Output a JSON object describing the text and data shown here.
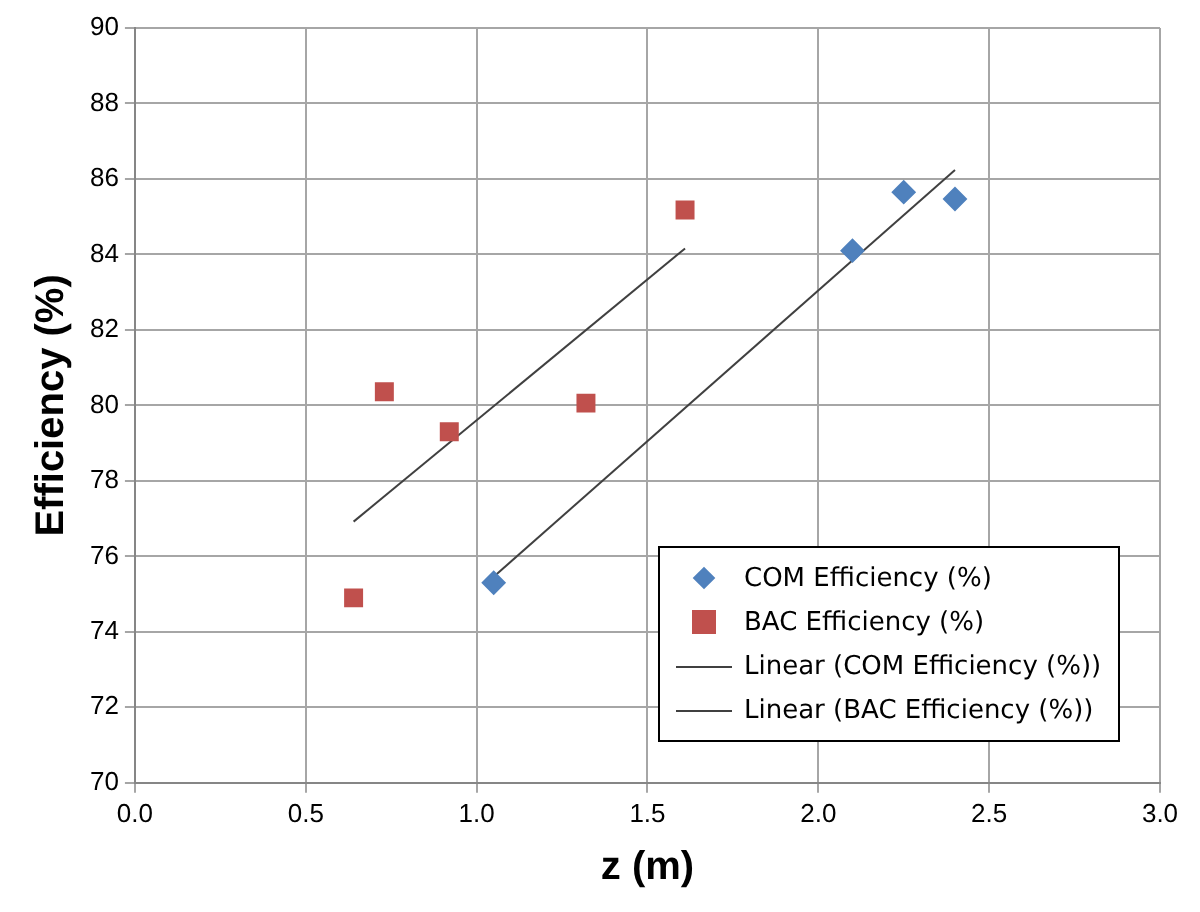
{
  "chart_data": {
    "type": "scatter",
    "xlabel": "z (m)",
    "ylabel": "Efficiency (%)",
    "xlim": [
      0,
      3
    ],
    "xticks": [
      {
        "value": 0,
        "label": "0.0"
      },
      {
        "value": 0.5,
        "label": "0.5"
      },
      {
        "value": 1,
        "label": "1.0"
      },
      {
        "value": 1.5,
        "label": "1.5"
      },
      {
        "value": 2,
        "label": "2.0"
      },
      {
        "value": 2.5,
        "label": "2.5"
      },
      {
        "value": 3,
        "label": "3.0"
      }
    ],
    "ylim": [
      70,
      90
    ],
    "yticks": [
      70,
      72,
      74,
      76,
      78,
      80,
      82,
      84,
      86,
      88,
      90
    ],
    "grid": true,
    "legend": "bottom right",
    "series": [
      {
        "name": "COM Efficiency (%)",
        "type": "scatter",
        "marker": "diamond",
        "color": "#4f81bd",
        "x": [
          1.05,
          2.1,
          2.25,
          2.4
        ],
        "values": [
          75.3,
          84.1,
          85.65,
          85.47
        ]
      },
      {
        "name": "BAC Efficiency (%)",
        "type": "scatter",
        "marker": "square",
        "color": "#c0504d",
        "x": [
          0.64,
          0.73,
          0.92,
          1.32,
          1.61
        ],
        "values": [
          74.9,
          80.36,
          79.3,
          80.06,
          85.18
        ]
      },
      {
        "name": "Linear (COM Efficiency (%))",
        "type": "line",
        "marker": "none",
        "line_style": "solid",
        "color": "#404040",
        "x": [
          1.05,
          2.4
        ],
        "values": [
          75.46,
          86.24
        ]
      },
      {
        "name": "Linear (BAC Efficiency (%))",
        "type": "line",
        "marker": "none",
        "line_style": "solid",
        "color": "#404040",
        "x": [
          0.64,
          1.61
        ],
        "values": [
          76.92,
          84.16
        ]
      }
    ]
  }
}
